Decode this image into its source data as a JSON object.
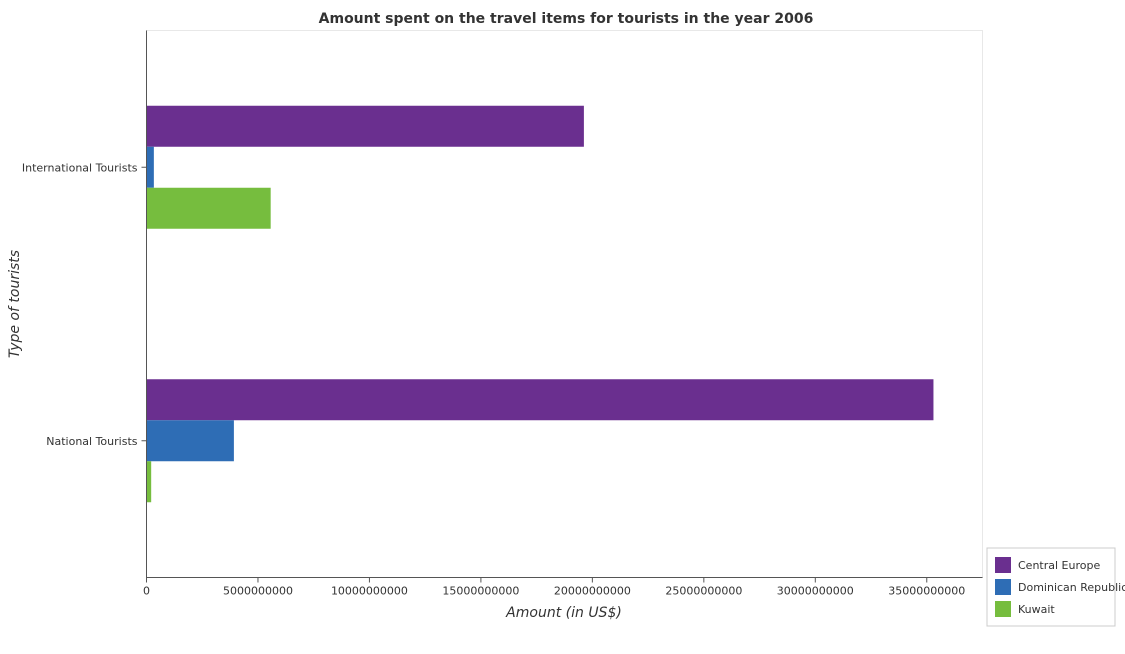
{
  "chart_data": {
    "type": "bar",
    "orientation": "horizontal",
    "title": "Amount spent on the travel items for tourists in the year 2006",
    "xlabel": "Amount (in US$)",
    "ylabel": "Type of tourists",
    "categories": [
      "International Tourists",
      "National Tourists"
    ],
    "series": [
      {
        "name": "Central Europe",
        "color": "#6a2f8f",
        "values": [
          19620000000,
          35300000000
        ]
      },
      {
        "name": "Dominican Republic",
        "color": "#2e6db5",
        "values": [
          330000000,
          3920000000
        ]
      },
      {
        "name": "Kuwait",
        "color": "#76bd3e",
        "values": [
          5570000000,
          210000000
        ]
      }
    ],
    "xlim": [
      0,
      37500000000
    ],
    "xticks": [
      0,
      5000000000,
      10000000000,
      15000000000,
      20000000000,
      25000000000,
      30000000000,
      35000000000
    ],
    "xtick_labels": [
      "0",
      "5000000000",
      "10000000000",
      "15000000000",
      "20000000000",
      "25000000000",
      "30000000000",
      "35000000000"
    ],
    "grid": false,
    "legend_position": "bottom-right"
  }
}
